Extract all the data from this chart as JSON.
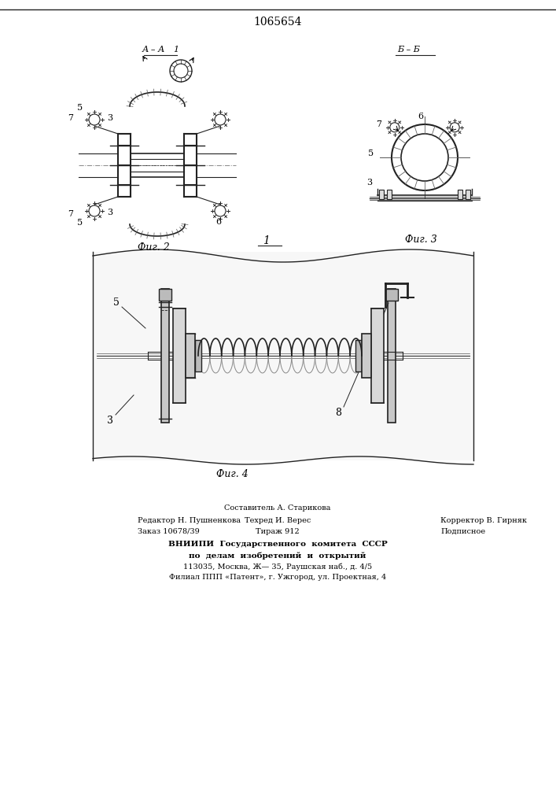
{
  "patent_number": "1065654",
  "background_color": "#ffffff",
  "fig_width": 7.07,
  "fig_height": 10.0,
  "line_color": "#222222",
  "footer": {
    "line1": "Составитель А. Старикова",
    "line2_left": "Редактор Н. Пушненкова",
    "line2_mid": "Техред И. Верес",
    "line2_right": "Корректор В. Гирняк",
    "line3_left": "Заказ 10678/39",
    "line3_mid": "Тираж 912",
    "line3_right": "Подписное",
    "line4": "ВНИИПИ  Государственного  комитета  СССР",
    "line5": "по  делам  изобретений  и  открытий",
    "line6": "113035, Москва, Ж— 35, Раушская наб., д. 4/5",
    "line7": "Филиал ППП «Патент», г. Ужгород, ул. Проектная, 4"
  }
}
